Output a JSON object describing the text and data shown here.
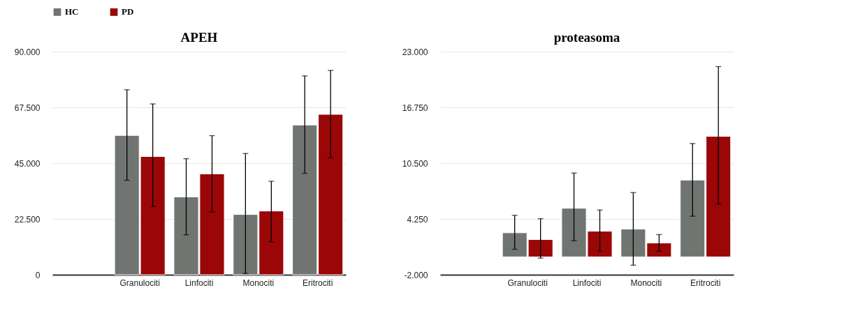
{
  "chart_data": [
    {
      "type": "bar",
      "title": "APEH",
      "categories": [
        null,
        "Granulociti",
        "Linfociti",
        "Monociti",
        "Eritrociti"
      ],
      "series": [
        {
          "name": "HC",
          "color": "#707572",
          "values": [
            null,
            56200,
            31400,
            24300,
            60400
          ],
          "errors": [
            null,
            [
              38100,
              74600
            ],
            [
              16100,
              46800
            ],
            [
              500,
              48900
            ],
            [
              40900,
              80200
            ]
          ]
        },
        {
          "name": "PD",
          "color": "#9b0606",
          "values": [
            null,
            47700,
            40700,
            25700,
            64700
          ],
          "errors": [
            null,
            [
              27500,
              68900
            ],
            [
              25300,
              56100
            ],
            [
              13300,
              37700
            ],
            [
              47200,
              82400
            ]
          ]
        }
      ],
      "ylim": [
        0,
        90000
      ],
      "yticks": [
        0,
        {
          "value": 22500,
          "label": "22.500"
        },
        {
          "value": 45000,
          "label": "45.000"
        },
        {
          "value": 67500,
          "label": "67.500"
        },
        {
          "value": 90000,
          "label": "90.000"
        }
      ],
      "grid": "y",
      "legend": "top"
    },
    {
      "type": "bar",
      "title": "proteasoma",
      "categories": [
        null,
        "Granulociti",
        "Linfociti",
        "Monociti",
        "Eritrociti"
      ],
      "series": [
        {
          "name": "HC",
          "color": "#707572",
          "values": [
            null,
            2700,
            5450,
            3110,
            8610
          ],
          "errors": [
            null,
            [
              850,
              4660
            ],
            [
              1810,
              9390
            ],
            [
              -930,
              7210
            ],
            [
              4560,
              12700
            ]
          ]
        },
        {
          "name": "PD",
          "color": "#9b0606",
          "values": [
            null,
            1940,
            2880,
            1560,
            13510
          ],
          "errors": [
            null,
            [
              -140,
              4280
            ],
            [
              640,
              5250
            ],
            [
              640,
              2500
            ],
            [
              5930,
              21320
            ]
          ]
        }
      ],
      "ylim": [
        -2000,
        23000
      ],
      "yticks": [
        {
          "value": -2000,
          "label": "-2.000"
        },
        {
          "value": 4250,
          "label": "4.250"
        },
        {
          "value": 10500,
          "label": "10.500"
        },
        {
          "value": 16750,
          "label": "16.750"
        },
        {
          "value": 23000,
          "label": "23.000"
        }
      ],
      "grid": "y",
      "legend": "top"
    }
  ]
}
